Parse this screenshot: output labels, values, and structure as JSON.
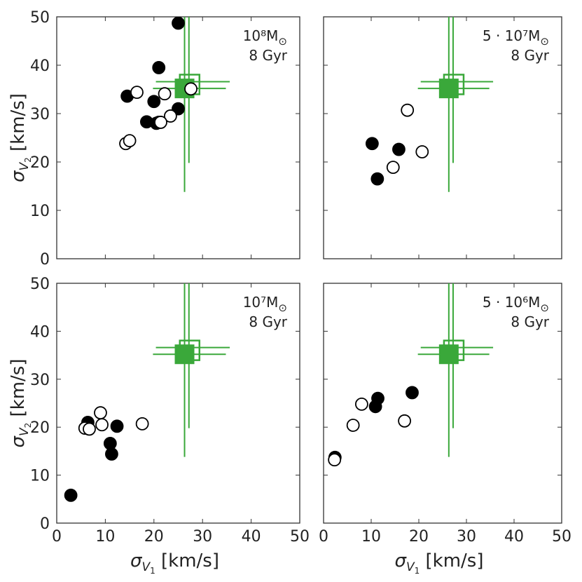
{
  "colors": {
    "reference": "#3aa83a",
    "frame": "#333333",
    "marker": "#000000"
  },
  "axis_labels": {
    "x": {
      "sym": "σ",
      "sub": "V",
      "subsub": "1",
      "unit": " [km/s]"
    },
    "y": {
      "sym": "σ",
      "sub": "V",
      "subsub": "2",
      "unit": "  [km/s]"
    }
  },
  "chart_data": [
    {
      "type": "scatter",
      "annotation": {
        "mass": "10⁸M",
        "sun": "⊙",
        "age": "8 Gyr"
      },
      "xlim": [
        0,
        50
      ],
      "ylim": [
        0,
        50
      ],
      "xticks": [
        0,
        10,
        20,
        30,
        40,
        50
      ],
      "yticks": [
        0,
        10,
        20,
        30,
        40,
        50
      ],
      "xlabel": "σV1 [km/s]",
      "ylabel": "σV2 [km/s]",
      "series": [
        {
          "name": "filled",
          "filled": true,
          "x": [
            21,
            25,
            14.5,
            20,
            18.5,
            21,
            20.5,
            25
          ],
          "y": [
            39.5,
            48.7,
            33.6,
            32.5,
            28.3,
            28.2,
            28.0,
            31.0
          ]
        },
        {
          "name": "open",
          "filled": false,
          "x": [
            16.5,
            22.2,
            14.2,
            15,
            23.4,
            21.4,
            27.6
          ],
          "y": [
            34.4,
            34.1,
            23.8,
            24.4,
            29.5,
            28.2,
            35.1
          ]
        }
      ],
      "reference": {
        "x": 26.3,
        "y": 35.2,
        "x_err_inner": [
          25,
          27.6
        ],
        "x_err_outer": [
          19.8,
          34.8
        ],
        "y_err_inner": [
          33.8,
          36.6
        ],
        "y_err_outer": [
          13.8,
          50.8
        ],
        "x2": 27.2,
        "y2": 36.6,
        "x2_err_outer": [
          20.4,
          35.6
        ],
        "y2_err_outer": [
          19.8,
          56
        ]
      }
    },
    {
      "type": "scatter",
      "annotation": {
        "mass": "5 · 10⁷M",
        "sun": "⊙",
        "age": "8 Gyr"
      },
      "xlim": [
        0,
        50
      ],
      "ylim": [
        0,
        50
      ],
      "xticks": [
        0,
        10,
        20,
        30,
        40,
        50
      ],
      "yticks": [
        0,
        10,
        20,
        30,
        40,
        50
      ],
      "xlabel": "σV1 [km/s]",
      "ylabel": "σV2 [km/s]",
      "series": [
        {
          "name": "filled",
          "filled": true,
          "x": [
            10.2,
            15.8,
            11.3
          ],
          "y": [
            23.8,
            22.6,
            16.5
          ]
        },
        {
          "name": "open",
          "filled": false,
          "x": [
            17.6,
            20.7,
            14.6
          ],
          "y": [
            30.7,
            22.1,
            18.9
          ]
        }
      ],
      "reference": {
        "x": 26.3,
        "y": 35.2,
        "x_err_inner": [
          25,
          27.6
        ],
        "x_err_outer": [
          19.8,
          34.8
        ],
        "y_err_inner": [
          33.8,
          36.6
        ],
        "y_err_outer": [
          13.8,
          50.8
        ],
        "x2": 27.2,
        "y2": 36.6,
        "x2_err_outer": [
          20.4,
          35.6
        ],
        "y2_err_outer": [
          19.8,
          56
        ]
      }
    },
    {
      "type": "scatter",
      "annotation": {
        "mass": "10⁷M",
        "sun": "⊙",
        "age": "8 Gyr"
      },
      "xlim": [
        0,
        50
      ],
      "ylim": [
        0,
        50
      ],
      "xticks": [
        0,
        10,
        20,
        30,
        40,
        50
      ],
      "yticks": [
        0,
        10,
        20,
        30,
        40,
        50
      ],
      "xlabel": "σV1 [km/s]",
      "ylabel": "σV2 [km/s]",
      "series": [
        {
          "name": "filled",
          "filled": true,
          "x": [
            2.9,
            6.4,
            11.0,
            11.3,
            12.4
          ],
          "y": [
            5.8,
            21.0,
            16.6,
            14.4,
            20.2
          ]
        },
        {
          "name": "open",
          "filled": false,
          "x": [
            5.8,
            6.7,
            9.0,
            9.3,
            17.6
          ],
          "y": [
            19.8,
            19.6,
            23.0,
            20.5,
            20.7
          ]
        }
      ],
      "reference": {
        "x": 26.3,
        "y": 35.2,
        "x_err_inner": [
          25,
          27.6
        ],
        "x_err_outer": [
          19.8,
          34.8
        ],
        "y_err_inner": [
          33.8,
          36.6
        ],
        "y_err_outer": [
          13.8,
          50.8
        ],
        "x2": 27.2,
        "y2": 36.6,
        "x2_err_outer": [
          20.4,
          35.6
        ],
        "y2_err_outer": [
          19.8,
          56
        ]
      }
    },
    {
      "type": "scatter",
      "annotation": {
        "mass": "5 · 10⁶M",
        "sun": "⊙",
        "age": "8 Gyr"
      },
      "xlim": [
        0,
        50
      ],
      "ylim": [
        0,
        50
      ],
      "xticks": [
        0,
        10,
        20,
        30,
        40,
        50
      ],
      "yticks": [
        0,
        10,
        20,
        30,
        40,
        50
      ],
      "xlabel": "σV1 [km/s]",
      "ylabel": "σV2 [km/s]",
      "series": [
        {
          "name": "filled",
          "filled": true,
          "x": [
            2.4,
            11.4,
            10.9,
            18.6
          ],
          "y": [
            13.7,
            26.0,
            24.3,
            27.2
          ]
        },
        {
          "name": "open",
          "filled": false,
          "x": [
            2.3,
            8.0,
            6.2,
            17.0
          ],
          "y": [
            13.2,
            24.8,
            20.4,
            21.3
          ]
        }
      ],
      "reference": {
        "x": 26.3,
        "y": 35.2,
        "x_err_inner": [
          25,
          27.6
        ],
        "x_err_outer": [
          19.8,
          34.8
        ],
        "y_err_inner": [
          33.8,
          36.6
        ],
        "y_err_outer": [
          13.8,
          50.8
        ],
        "x2": 27.2,
        "y2": 36.6,
        "x2_err_outer": [
          20.4,
          35.6
        ],
        "y2_err_outer": [
          19.8,
          56
        ]
      }
    }
  ]
}
